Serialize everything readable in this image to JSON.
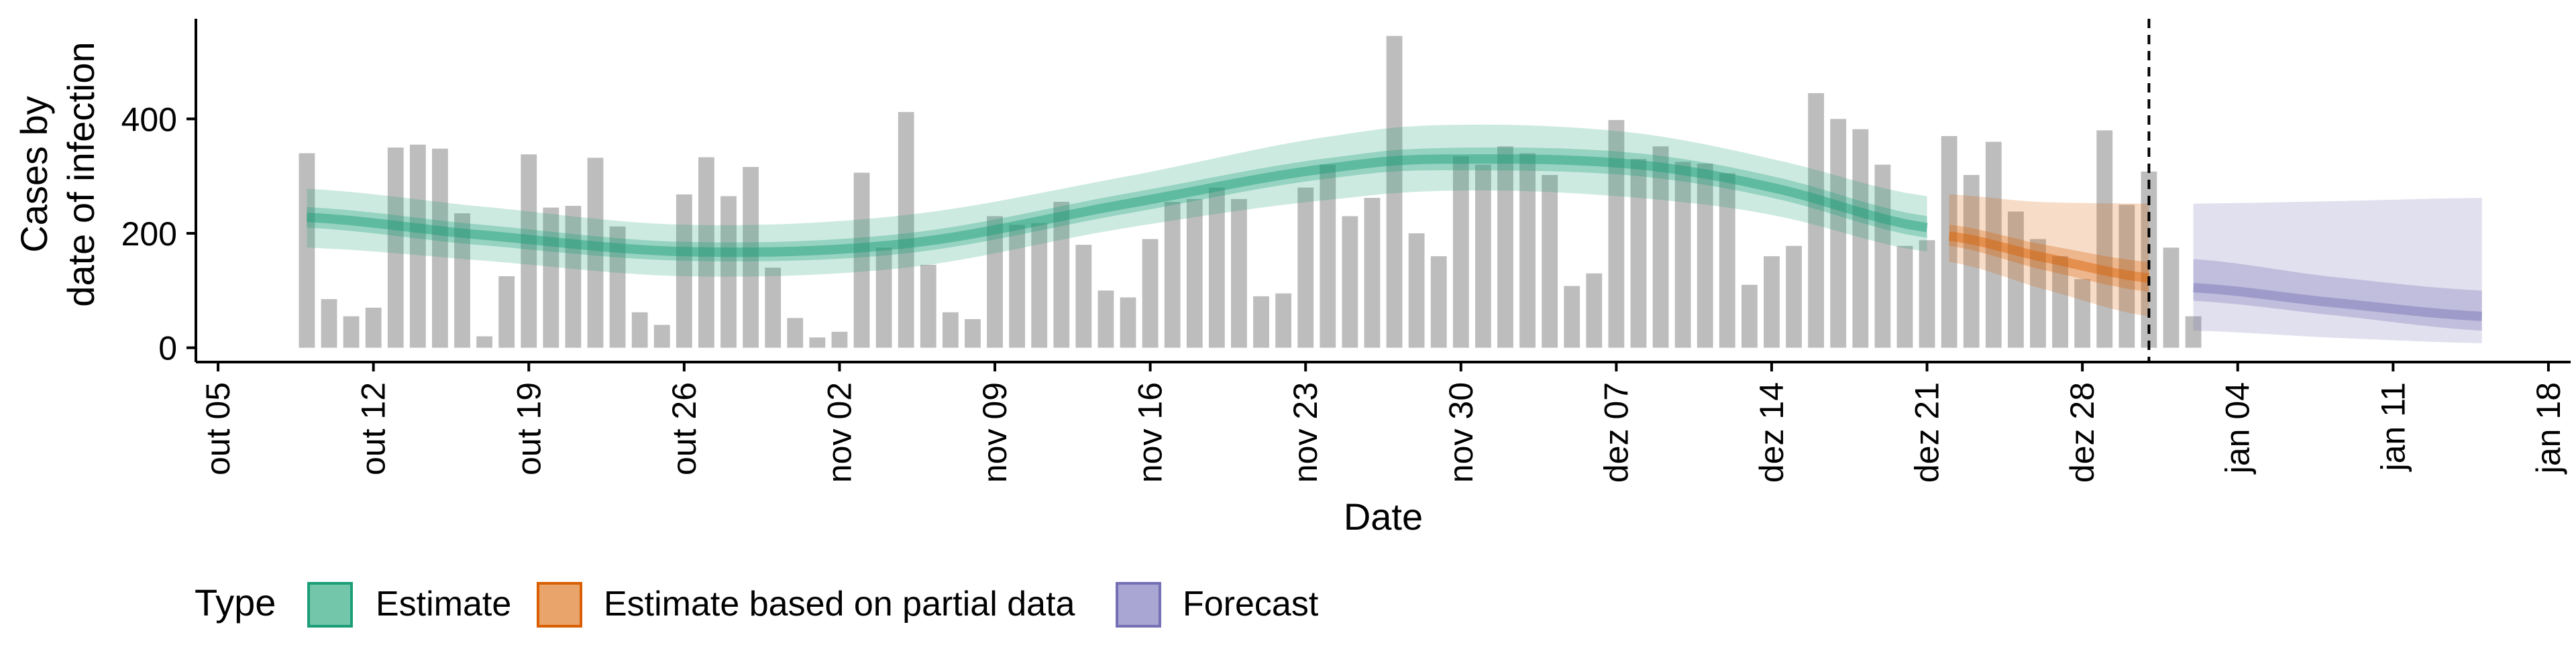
{
  "chart_data": {
    "type": "bar",
    "xlabel": "Date",
    "ylabel_lines": [
      "Cases by",
      "date of infection"
    ],
    "x_ticks": [
      {
        "date": "2020-10-05",
        "label": "out 05"
      },
      {
        "date": "2020-10-12",
        "label": "out 12"
      },
      {
        "date": "2020-10-19",
        "label": "out 19"
      },
      {
        "date": "2020-10-26",
        "label": "out 26"
      },
      {
        "date": "2020-11-02",
        "label": "nov 02"
      },
      {
        "date": "2020-11-09",
        "label": "nov 09"
      },
      {
        "date": "2020-11-16",
        "label": "nov 16"
      },
      {
        "date": "2020-11-23",
        "label": "nov 23"
      },
      {
        "date": "2020-11-30",
        "label": "nov 30"
      },
      {
        "date": "2020-12-07",
        "label": "dez 07"
      },
      {
        "date": "2020-12-14",
        "label": "dez 14"
      },
      {
        "date": "2020-12-21",
        "label": "dez 21"
      },
      {
        "date": "2020-12-28",
        "label": "dez 28"
      },
      {
        "date": "2021-01-04",
        "label": "jan 04"
      },
      {
        "date": "2021-01-11",
        "label": "jan 11"
      },
      {
        "date": "2021-01-18",
        "label": "jan 18"
      }
    ],
    "x_range": [
      "2020-10-04",
      "2021-01-19"
    ],
    "y_ticks": [
      0,
      200,
      400
    ],
    "ylim": [
      -25,
      575
    ],
    "forecast_start_date": "2020-12-31",
    "bars": {
      "color": "#bdbdbd",
      "start_date": "2020-10-09",
      "values": [
        340,
        85,
        55,
        70,
        350,
        355,
        348,
        235,
        20,
        125,
        338,
        245,
        248,
        332,
        212,
        62,
        40,
        268,
        333,
        265,
        316,
        140,
        52,
        18,
        28,
        306,
        175,
        412,
        145,
        62,
        50,
        230,
        215,
        218,
        255,
        180,
        100,
        88,
        190,
        255,
        260,
        280,
        260,
        90,
        95,
        280,
        320,
        230,
        262,
        545,
        200,
        160,
        335,
        320,
        352,
        340,
        302,
        108,
        130,
        398,
        330,
        352,
        325,
        322,
        305,
        110,
        160,
        178,
        445,
        400,
        382,
        320,
        178,
        188,
        370,
        302,
        360,
        238,
        190,
        160,
        120,
        380,
        250,
        308,
        175,
        55
      ]
    },
    "series": [
      {
        "name": "Estimate",
        "color": "#1b9e77",
        "fill": "#74c6aa",
        "x": [
          "2020-10-09",
          "2020-10-16",
          "2020-10-26",
          "2020-11-05",
          "2020-11-15",
          "2020-11-25",
          "2020-12-01",
          "2020-12-08",
          "2020-12-14",
          "2020-12-21"
        ],
        "median": [
          228,
          200,
          168,
          182,
          252,
          318,
          330,
          320,
          280,
          210
        ],
        "inner_low": [
          210,
          182,
          152,
          165,
          235,
          300,
          310,
          300,
          262,
          192
        ],
        "inner_high": [
          246,
          218,
          185,
          200,
          270,
          336,
          350,
          340,
          300,
          230
        ],
        "outer_low": [
          175,
          155,
          125,
          140,
          210,
          262,
          275,
          262,
          232,
          168
        ],
        "outer_high": [
          278,
          250,
          215,
          232,
          300,
          374,
          390,
          375,
          330,
          265
        ]
      },
      {
        "name": "Estimate based on partial data",
        "color": "#d95f02",
        "fill": "#e9a46c",
        "x": [
          "2020-12-22",
          "2020-12-26",
          "2020-12-31"
        ],
        "median": [
          195,
          160,
          122
        ],
        "inner_low": [
          178,
          138,
          98
        ],
        "inner_high": [
          215,
          182,
          150
        ],
        "outer_low": [
          150,
          105,
          55
        ],
        "outer_high": [
          268,
          255,
          252
        ]
      },
      {
        "name": "Forecast",
        "color": "#7570b3",
        "fill": "#a9a6d4",
        "x": [
          "2021-01-02",
          "2021-01-08",
          "2021-01-15"
        ],
        "median": [
          105,
          80,
          55
        ],
        "inner_low": [
          82,
          58,
          30
        ],
        "inner_high": [
          155,
          125,
          100
        ],
        "outer_low": [
          30,
          18,
          8
        ],
        "outer_high": [
          252,
          256,
          262
        ]
      }
    ],
    "legend": {
      "title": "Type",
      "position": "bottom-left",
      "items": [
        "Estimate",
        "Estimate based on partial data",
        "Forecast"
      ]
    },
    "grid": false
  }
}
